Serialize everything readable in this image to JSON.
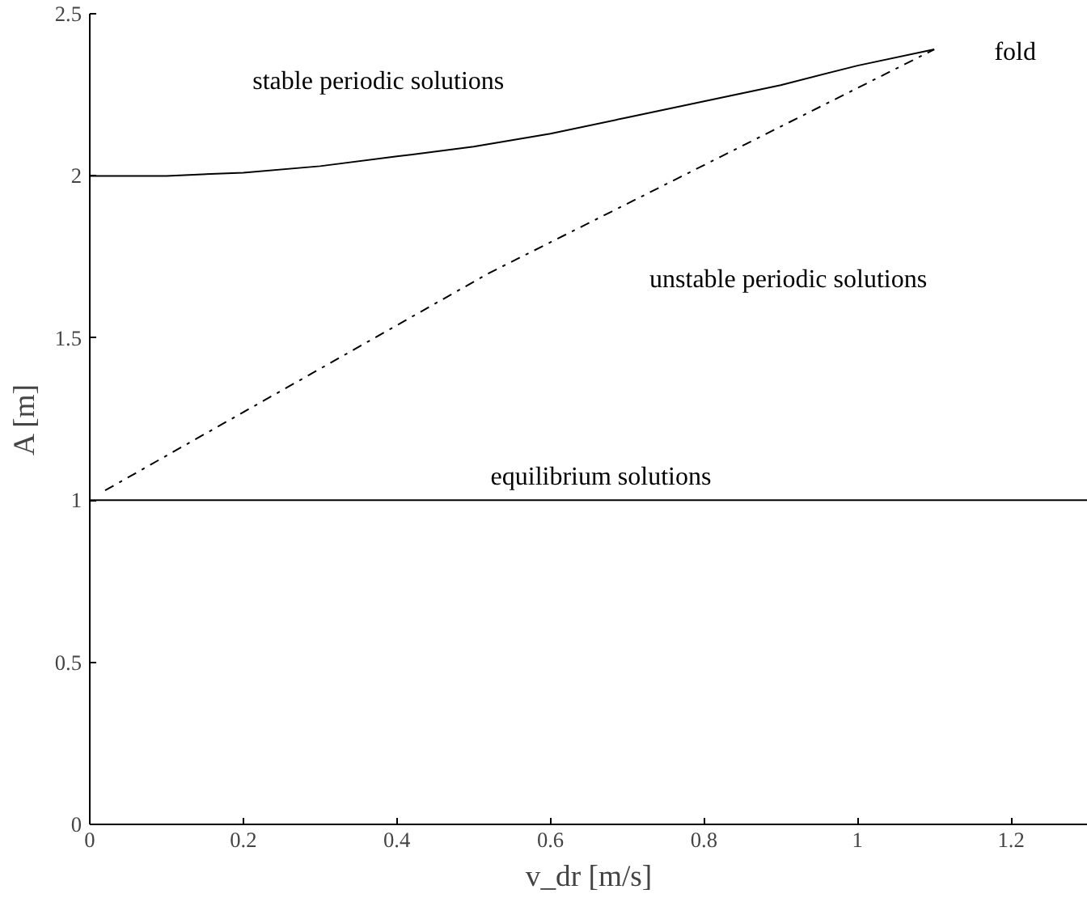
{
  "chart_data": {
    "type": "line",
    "xlabel": "v_dr [m/s]",
    "ylabel": "A [m]",
    "xlim": [
      0,
      1.3
    ],
    "ylim": [
      0,
      2.5
    ],
    "xticks": [
      0,
      0.2,
      0.4,
      0.6,
      0.8,
      1,
      1.2
    ],
    "yticks": [
      0,
      0.5,
      1,
      1.5,
      2,
      2.5
    ],
    "grid": false,
    "legend": false,
    "marker": "none",
    "series": [
      {
        "name": "stable periodic solutions",
        "color": "#000000",
        "line_style": "solid",
        "x": [
          0,
          0.1,
          0.2,
          0.3,
          0.4,
          0.5,
          0.6,
          0.7,
          0.8,
          0.9,
          1.0,
          1.1
        ],
        "values": [
          2.0,
          2.0,
          2.01,
          2.03,
          2.06,
          2.09,
          2.13,
          2.18,
          2.23,
          2.28,
          2.34,
          2.39
        ]
      },
      {
        "name": "unstable periodic solutions",
        "color": "#000000",
        "line_style": "dashdot",
        "x": [
          0.02,
          0.52,
          1.1
        ],
        "values": [
          1.03,
          1.7,
          2.39
        ]
      },
      {
        "name": "equilibrium solutions",
        "color": "#000000",
        "line_style": "solid",
        "x": [
          0,
          1.3
        ],
        "values": [
          1,
          1
        ]
      }
    ],
    "annotations": [
      {
        "text": "fold",
        "x": 1.1,
        "y": 2.39
      }
    ]
  }
}
